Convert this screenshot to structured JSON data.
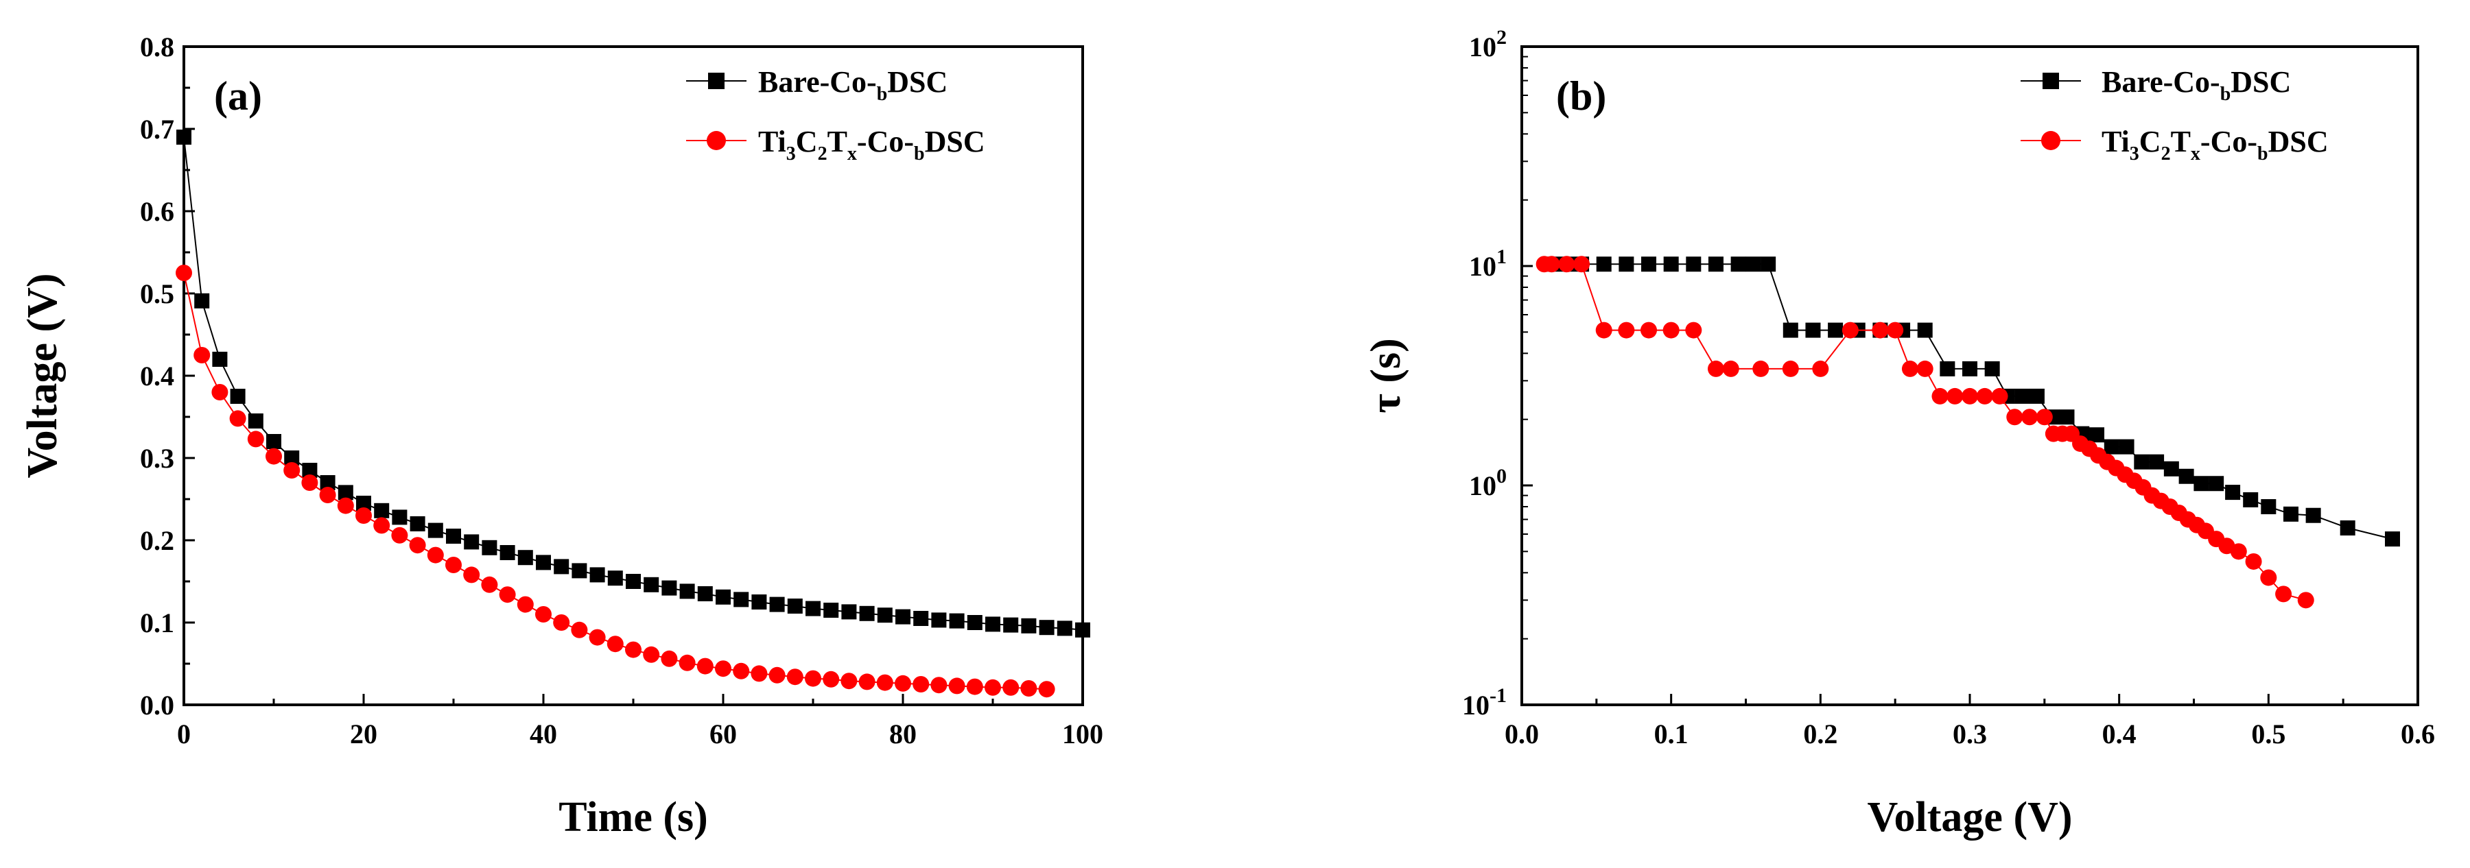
{
  "chart_data": [
    {
      "panel_label": "(a)",
      "type": "line",
      "xscale": "linear",
      "yscale": "linear",
      "xlabel": "Time (s)",
      "ylabel": "Voltage (V)",
      "xlim": [
        0,
        100
      ],
      "ylim": [
        0,
        0.8
      ],
      "xticks": [
        0,
        20,
        40,
        60,
        80,
        100
      ],
      "yticks": [
        0.0,
        0.1,
        0.2,
        0.3,
        0.4,
        0.5,
        0.6,
        0.7,
        0.8
      ],
      "xtick_labels": [
        "0",
        "20",
        "40",
        "60",
        "80",
        "100"
      ],
      "ytick_labels": [
        "0.0",
        "0.1",
        "0.2",
        "0.3",
        "0.4",
        "0.5",
        "0.6",
        "0.7",
        "0.8"
      ],
      "legend_position": "top-right",
      "series": [
        {
          "name": "Bare-Co-bDSC",
          "color": "#000000",
          "marker": "square",
          "x": [
            0,
            2,
            4,
            6,
            8,
            10,
            12,
            14,
            16,
            18,
            20,
            22,
            24,
            26,
            28,
            30,
            32,
            34,
            36,
            38,
            40,
            42,
            44,
            46,
            48,
            50,
            52,
            54,
            56,
            58,
            60,
            62,
            64,
            66,
            68,
            70,
            72,
            74,
            76,
            78,
            80,
            82,
            84,
            86,
            88,
            90,
            92,
            94,
            96,
            98,
            100
          ],
          "y": [
            0.69,
            0.491,
            0.42,
            0.375,
            0.345,
            0.32,
            0.3,
            0.285,
            0.27,
            0.258,
            0.245,
            0.236,
            0.228,
            0.22,
            0.212,
            0.205,
            0.198,
            0.191,
            0.185,
            0.179,
            0.173,
            0.168,
            0.163,
            0.158,
            0.154,
            0.15,
            0.146,
            0.142,
            0.138,
            0.135,
            0.131,
            0.128,
            0.125,
            0.122,
            0.12,
            0.117,
            0.115,
            0.113,
            0.111,
            0.109,
            0.107,
            0.105,
            0.103,
            0.102,
            0.1,
            0.098,
            0.097,
            0.096,
            0.094,
            0.093,
            0.091
          ]
        },
        {
          "name": "Ti3C2Tx-Co-bDSC",
          "color": "#ff0000",
          "marker": "circle",
          "x": [
            0,
            2,
            4,
            6,
            8,
            10,
            12,
            14,
            16,
            18,
            20,
            22,
            24,
            26,
            28,
            30,
            32,
            34,
            36,
            38,
            40,
            42,
            44,
            46,
            48,
            50,
            52,
            54,
            56,
            58,
            60,
            62,
            64,
            66,
            68,
            70,
            72,
            74,
            76,
            78,
            80,
            82,
            84,
            86,
            88,
            90,
            92,
            94,
            96
          ],
          "y": [
            0.525,
            0.425,
            0.38,
            0.348,
            0.323,
            0.302,
            0.285,
            0.27,
            0.255,
            0.242,
            0.23,
            0.218,
            0.206,
            0.194,
            0.182,
            0.17,
            0.158,
            0.146,
            0.134,
            0.122,
            0.11,
            0.1,
            0.091,
            0.082,
            0.074,
            0.067,
            0.061,
            0.056,
            0.051,
            0.047,
            0.044,
            0.041,
            0.038,
            0.036,
            0.034,
            0.032,
            0.031,
            0.029,
            0.028,
            0.027,
            0.026,
            0.025,
            0.024,
            0.023,
            0.022,
            0.021,
            0.021,
            0.02,
            0.019
          ]
        }
      ]
    },
    {
      "panel_label": "(b)",
      "type": "line",
      "xscale": "linear",
      "yscale": "log",
      "xlabel": "Voltage (V)",
      "ylabel": "τ (s)",
      "xlim": [
        0,
        0.6
      ],
      "ylim": [
        0.1,
        100
      ],
      "xticks": [
        0,
        0.1,
        0.2,
        0.3,
        0.4,
        0.5,
        0.6
      ],
      "xtick_labels": [
        "0.0",
        "0.1",
        "0.2",
        "0.3",
        "0.4",
        "0.5",
        "0.6"
      ],
      "yticks": [
        0.1,
        1,
        10,
        100
      ],
      "ytick_labels": [
        {
          "base": "10",
          "exp": "-1"
        },
        {
          "base": "10",
          "exp": "0"
        },
        {
          "base": "10",
          "exp": "1"
        },
        {
          "base": "10",
          "exp": "2"
        }
      ],
      "legend_position": "top-right",
      "series": [
        {
          "name": "Bare-Co-bDSC",
          "color": "#000000",
          "marker": "square",
          "x": [
            0.583,
            0.553,
            0.53,
            0.515,
            0.5,
            0.488,
            0.476,
            0.465,
            0.455,
            0.445,
            0.435,
            0.425,
            0.415,
            0.405,
            0.395,
            0.385,
            0.375,
            0.365,
            0.355,
            0.345,
            0.335,
            0.325,
            0.315,
            0.3,
            0.285,
            0.27,
            0.255,
            0.24,
            0.225,
            0.21,
            0.195,
            0.18,
            0.165,
            0.155,
            0.145,
            0.13,
            0.115,
            0.1,
            0.085,
            0.07,
            0.055,
            0.04,
            0.03,
            0.02
          ],
          "y": [
            0.57,
            0.64,
            0.73,
            0.74,
            0.8,
            0.86,
            0.93,
            1.02,
            1.02,
            1.1,
            1.19,
            1.28,
            1.28,
            1.5,
            1.5,
            1.7,
            1.72,
            2.05,
            2.05,
            2.55,
            2.55,
            2.55,
            3.4,
            3.4,
            3.4,
            5.1,
            5.1,
            5.1,
            5.1,
            5.1,
            5.1,
            5.1,
            10.2,
            10.2,
            10.2,
            10.2,
            10.2,
            10.2,
            10.2,
            10.2,
            10.2,
            10.2,
            10.2,
            10.2
          ]
        },
        {
          "name": "Ti3C2Tx-Co-bDSC",
          "color": "#ff0000",
          "marker": "circle",
          "x": [
            0.525,
            0.51,
            0.5,
            0.49,
            0.48,
            0.472,
            0.465,
            0.458,
            0.452,
            0.446,
            0.44,
            0.434,
            0.428,
            0.422,
            0.416,
            0.41,
            0.404,
            0.398,
            0.392,
            0.386,
            0.38,
            0.374,
            0.368,
            0.362,
            0.356,
            0.35,
            0.34,
            0.33,
            0.32,
            0.31,
            0.3,
            0.29,
            0.28,
            0.27,
            0.26,
            0.25,
            0.24,
            0.22,
            0.2,
            0.18,
            0.16,
            0.14,
            0.13,
            0.115,
            0.1,
            0.085,
            0.07,
            0.055,
            0.04,
            0.03,
            0.02,
            0.015
          ],
          "y": [
            0.3,
            0.32,
            0.38,
            0.45,
            0.5,
            0.53,
            0.57,
            0.62,
            0.66,
            0.7,
            0.75,
            0.8,
            0.85,
            0.9,
            0.98,
            1.05,
            1.12,
            1.2,
            1.28,
            1.37,
            1.47,
            1.55,
            1.72,
            1.72,
            1.72,
            2.05,
            2.05,
            2.05,
            2.55,
            2.55,
            2.55,
            2.55,
            2.55,
            3.4,
            3.4,
            5.1,
            5.1,
            5.1,
            3.4,
            3.4,
            3.4,
            3.4,
            3.4,
            5.1,
            5.1,
            5.1,
            5.1,
            5.1,
            10.2,
            10.2,
            10.2,
            10.2
          ]
        }
      ]
    }
  ]
}
